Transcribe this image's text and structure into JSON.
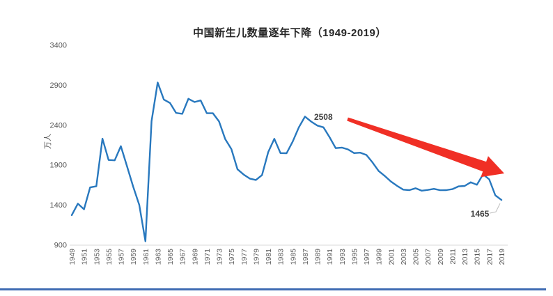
{
  "chart_data": {
    "type": "line",
    "title": "中国新生儿数量逐年下降（1949-2019）",
    "xlabel": "",
    "ylabel": "万人",
    "ylim": [
      900,
      3400
    ],
    "y_ticks": [
      900,
      1400,
      1900,
      2400,
      2900,
      3400
    ],
    "x_tick_years": [
      1949,
      1951,
      1953,
      1955,
      1957,
      1959,
      1961,
      1963,
      1965,
      1967,
      1969,
      1971,
      1973,
      1975,
      1977,
      1979,
      1981,
      1983,
      1985,
      1987,
      1989,
      1991,
      1993,
      1995,
      1997,
      1999,
      2001,
      2003,
      2005,
      2007,
      2009,
      2011,
      2013,
      2015,
      2017,
      2019
    ],
    "x": [
      1949,
      1950,
      1951,
      1952,
      1953,
      1954,
      1955,
      1956,
      1957,
      1958,
      1959,
      1960,
      1961,
      1962,
      1963,
      1964,
      1965,
      1966,
      1967,
      1968,
      1969,
      1970,
      1971,
      1972,
      1973,
      1974,
      1975,
      1976,
      1977,
      1978,
      1979,
      1980,
      1981,
      1982,
      1983,
      1984,
      1985,
      1986,
      1987,
      1988,
      1989,
      1990,
      1991,
      1992,
      1993,
      1994,
      1995,
      1996,
      1997,
      1998,
      1999,
      2000,
      2001,
      2002,
      2003,
      2004,
      2005,
      2006,
      2007,
      2008,
      2009,
      2010,
      2011,
      2012,
      2013,
      2014,
      2015,
      2016,
      2017,
      2018,
      2019
    ],
    "values": [
      1275,
      1419,
      1349,
      1622,
      1637,
      2232,
      1965,
      1961,
      2138,
      1889,
      1635,
      1402,
      949,
      2451,
      2934,
      2721,
      2679,
      2554,
      2543,
      2731,
      2690,
      2710,
      2551,
      2550,
      2447,
      2226,
      2102,
      1849,
      1783,
      1733,
      1715,
      1776,
      2064,
      2230,
      2052,
      2050,
      2196,
      2374,
      2508,
      2445,
      2396,
      2374,
      2250,
      2113,
      2120,
      2098,
      2052,
      2057,
      2028,
      1934,
      1827,
      1765,
      1696,
      1641,
      1594,
      1588,
      1612,
      1581,
      1591,
      1604,
      1587,
      1588,
      1600,
      1635,
      1640,
      1687,
      1655,
      1786,
      1723,
      1523,
      1465
    ],
    "annotations": [
      {
        "year": 1987,
        "value": 2508,
        "label": "2508"
      },
      {
        "year": 2019,
        "value": 1465,
        "label": "1465"
      }
    ],
    "grid": false,
    "legend": false
  },
  "colors": {
    "line": "#2878be",
    "arrow": "#f02f25",
    "axis_text": "#595959",
    "data_label_text": "#404040",
    "baseline": "#d9d9d9",
    "leader_line": "#bfbfbf",
    "bottom_bar": "#3f6cb3"
  }
}
